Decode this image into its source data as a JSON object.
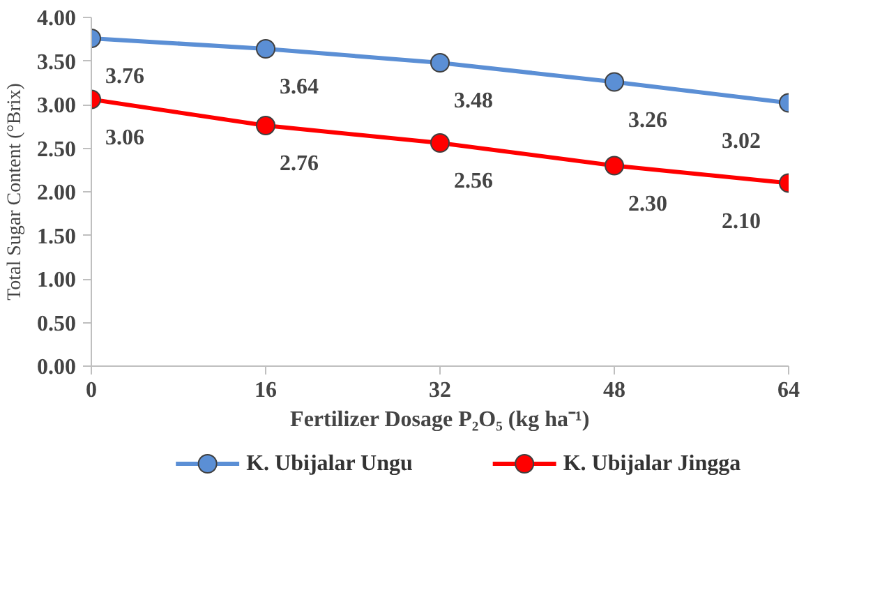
{
  "chart_data": {
    "type": "line",
    "xlabel": "Fertilizer Dosage P₂O₅ (kg ha⁻¹)",
    "ylabel": "Total Sugar Content (°Brix)",
    "x": [
      0,
      16,
      32,
      48,
      64
    ],
    "xlim": [
      0,
      64
    ],
    "xticks": [
      0,
      16,
      32,
      48,
      64
    ],
    "ylim": [
      0,
      4
    ],
    "yticks": [
      {
        "value": 0,
        "label": "0.00"
      },
      {
        "value": 0.5,
        "label": "0.50"
      },
      {
        "value": 1,
        "label": "1.00"
      },
      {
        "value": 1.5,
        "label": "1.50"
      },
      {
        "value": 2,
        "label": "2.00"
      },
      {
        "value": 2.5,
        "label": "2.50"
      },
      {
        "value": 3,
        "label": "3.00"
      },
      {
        "value": 3.5,
        "label": "3.50"
      },
      {
        "value": 4,
        "label": "4.00"
      }
    ],
    "series": [
      {
        "name": "K. Ubijalar Ungu",
        "color": "#5b8fd5",
        "values": [
          3.76,
          3.64,
          3.48,
          3.26,
          3.02
        ],
        "value_labels": [
          "3.76",
          "3.64",
          "3.48",
          "3.26",
          "3.02"
        ]
      },
      {
        "name": "K. Ubijalar Jingga",
        "color": "#ff0000",
        "values": [
          3.06,
          2.76,
          2.56,
          2.3,
          2.1
        ],
        "value_labels": [
          "3.06",
          "2.76",
          "2.56",
          "2.30",
          "2.10"
        ]
      }
    ],
    "marker": "circle",
    "line_style": "solid",
    "grid": false,
    "legend": "bottom"
  }
}
